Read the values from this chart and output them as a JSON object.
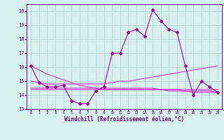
{
  "x": [
    0,
    1,
    2,
    3,
    4,
    5,
    6,
    7,
    8,
    9,
    10,
    11,
    12,
    13,
    14,
    15,
    16,
    17,
    18,
    19,
    20,
    21,
    22,
    23
  ],
  "line_main": [
    16.1,
    14.9,
    14.6,
    14.6,
    14.7,
    13.6,
    13.4,
    13.4,
    14.3,
    14.6,
    17.0,
    17.0,
    18.5,
    18.7,
    18.2,
    20.1,
    19.3,
    18.7,
    18.5,
    16.1,
    14.0,
    15.0,
    14.6,
    14.2
  ],
  "line_ref1": [
    15.0,
    14.9,
    14.8,
    14.8,
    14.8,
    14.8,
    14.8,
    14.8,
    14.8,
    14.8,
    14.9,
    15.0,
    15.0,
    15.1,
    15.2,
    15.3,
    15.4,
    15.5,
    15.6,
    15.7,
    15.8,
    15.9,
    16.0,
    16.1
  ],
  "line_ref2": [
    14.5,
    14.5,
    14.5,
    14.5,
    14.5,
    14.5,
    14.5,
    14.5,
    14.5,
    14.5,
    14.5,
    14.5,
    14.5,
    14.5,
    14.5,
    14.5,
    14.4,
    14.4,
    14.4,
    14.3,
    14.3,
    14.3,
    14.3,
    14.2
  ],
  "line_ref3": [
    14.4,
    14.4,
    14.4,
    14.4,
    14.4,
    14.4,
    14.4,
    14.4,
    14.4,
    14.4,
    14.4,
    14.4,
    14.4,
    14.4,
    14.4,
    14.4,
    14.4,
    14.3,
    14.3,
    14.3,
    14.2,
    14.2,
    14.2,
    14.2
  ],
  "line_ref4": [
    16.1,
    15.8,
    15.5,
    15.3,
    15.1,
    14.9,
    14.7,
    14.6,
    14.5,
    14.4,
    14.4,
    14.4,
    14.4,
    14.4,
    14.4,
    14.4,
    14.4,
    14.4,
    14.4,
    14.4,
    14.4,
    14.4,
    14.4,
    14.4
  ],
  "color_main": "#990099",
  "color_refs": "#cc33cc",
  "bg_color": "#d8f0f0",
  "grid_color": "#aacccc",
  "ylim": [
    13,
    20.5
  ],
  "yticks": [
    13,
    14,
    15,
    16,
    17,
    18,
    19,
    20
  ],
  "xticks": [
    0,
    1,
    2,
    3,
    4,
    5,
    6,
    7,
    8,
    9,
    10,
    11,
    12,
    13,
    14,
    15,
    16,
    17,
    18,
    19,
    20,
    21,
    22,
    23
  ],
  "xlabel": "Windchill (Refroidissement éolien,°C)",
  "xlabel_color": "#660066",
  "tick_color": "#660066",
  "marker": "D",
  "markersize": 2.0,
  "linewidth": 0.8
}
